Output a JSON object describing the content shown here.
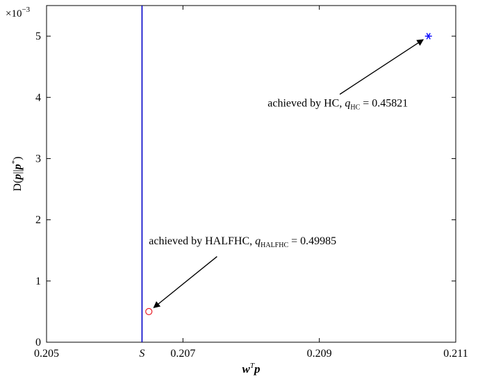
{
  "chart_data": {
    "type": "scatter",
    "title": "",
    "xlabel": "w^T p",
    "ylabel": "D(p||p*)",
    "y_scale_label": "×10",
    "y_scale_exponent": "−3",
    "xlim": [
      0.205,
      0.211
    ],
    "ylim": [
      0,
      5.5
    ],
    "x_ticks": [
      {
        "value": 0.205,
        "label": "0.205"
      },
      {
        "value": 0.2064,
        "label": "S"
      },
      {
        "value": 0.207,
        "label": "0.207"
      },
      {
        "value": 0.209,
        "label": "0.209"
      },
      {
        "value": 0.211,
        "label": "0.211"
      }
    ],
    "y_ticks": [
      {
        "value": 0,
        "label": "0"
      },
      {
        "value": 1,
        "label": "1"
      },
      {
        "value": 2,
        "label": "2"
      },
      {
        "value": 3,
        "label": "3"
      },
      {
        "value": 4,
        "label": "4"
      },
      {
        "value": 5,
        "label": "5"
      }
    ],
    "grid": false,
    "vertical_line": {
      "x": 0.2064,
      "color": "#0000c8"
    },
    "points": [
      {
        "x": 0.2065,
        "y": 0.5,
        "marker": "circle",
        "color": "#e8202a"
      },
      {
        "x": 0.2106,
        "y": 5.0,
        "marker": "asterisk",
        "color": "#0000ff"
      }
    ],
    "annotations": [
      {
        "text": "achieved by HC, q",
        "sub": "HC",
        "value": " = 0.45821",
        "target": {
          "x": 0.2106,
          "y": 5.0
        },
        "text_anchor": "end",
        "text_pos": {
          "x": 0.2103,
          "y": 3.85
        },
        "arrow_from": {
          "x": 0.2093,
          "y": 4.05
        }
      },
      {
        "text": "achieved by HALFHC, q",
        "sub": "HALFHC",
        "value": " = 0.49985",
        "target": {
          "x": 0.2065,
          "y": 0.5
        },
        "text_anchor": "start",
        "text_pos": {
          "x": 0.2065,
          "y": 1.6
        },
        "arrow_from": {
          "x": 0.2075,
          "y": 1.4
        }
      }
    ]
  }
}
